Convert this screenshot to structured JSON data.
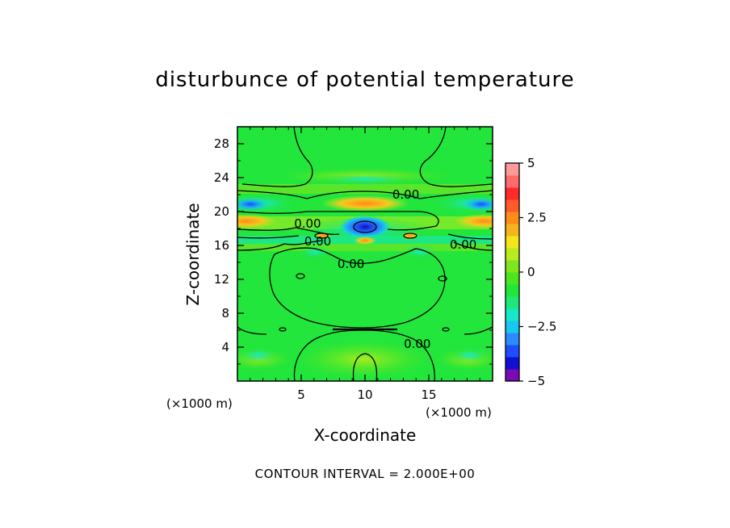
{
  "chart_data": {
    "type": "heatmap",
    "title": "disturbunce of potential temperature",
    "xlabel": "X-coordinate",
    "ylabel": "Z-coordinate",
    "x_unit_label": "(×1000 m)",
    "x_unit_label_2": "(×1000 m)",
    "xlim": [
      0,
      20
    ],
    "ylim": [
      0,
      30
    ],
    "xticks": [
      5,
      10,
      15
    ],
    "xtick_labels": [
      "5",
      "10",
      "15"
    ],
    "yticks": [
      4,
      8,
      12,
      16,
      20,
      24,
      28
    ],
    "ytick_labels": [
      "4",
      "8",
      "12",
      "16",
      "20",
      "24",
      "28"
    ],
    "colorbar": {
      "range": [
        -5,
        5
      ],
      "ticks": [
        5,
        2.5,
        0,
        -2.5,
        -5
      ],
      "tick_labels": [
        "5",
        "2.5",
        "0",
        "−2.5",
        "−5"
      ],
      "colors": [
        "#7b0bb5",
        "#1010d0",
        "#1f4dff",
        "#2a8cff",
        "#19c8f0",
        "#18e8c8",
        "#1ee87a",
        "#22e63c",
        "#4ce61e",
        "#7fe61e",
        "#b8ec1e",
        "#f0e619",
        "#f5b41e",
        "#ff8c19",
        "#ff5a2a",
        "#ff2a2a",
        "#ff6a6a",
        "#ff9a9a"
      ]
    },
    "contour_labels": [
      {
        "text": "0.00",
        "x": 13.2,
        "z": 21.8
      },
      {
        "text": "0.00",
        "x": 5.5,
        "z": 18.4
      },
      {
        "text": "0.00",
        "x": 6.3,
        "z": 16.3
      },
      {
        "text": "0.00",
        "x": 17.7,
        "z": 15.9
      },
      {
        "text": "0.00",
        "x": 8.9,
        "z": 13.6
      },
      {
        "text": "0.00",
        "x": 14.1,
        "z": 4.2
      }
    ],
    "grid": false
  },
  "footer": "CONTOUR INTERVAL = 2.000E+00"
}
